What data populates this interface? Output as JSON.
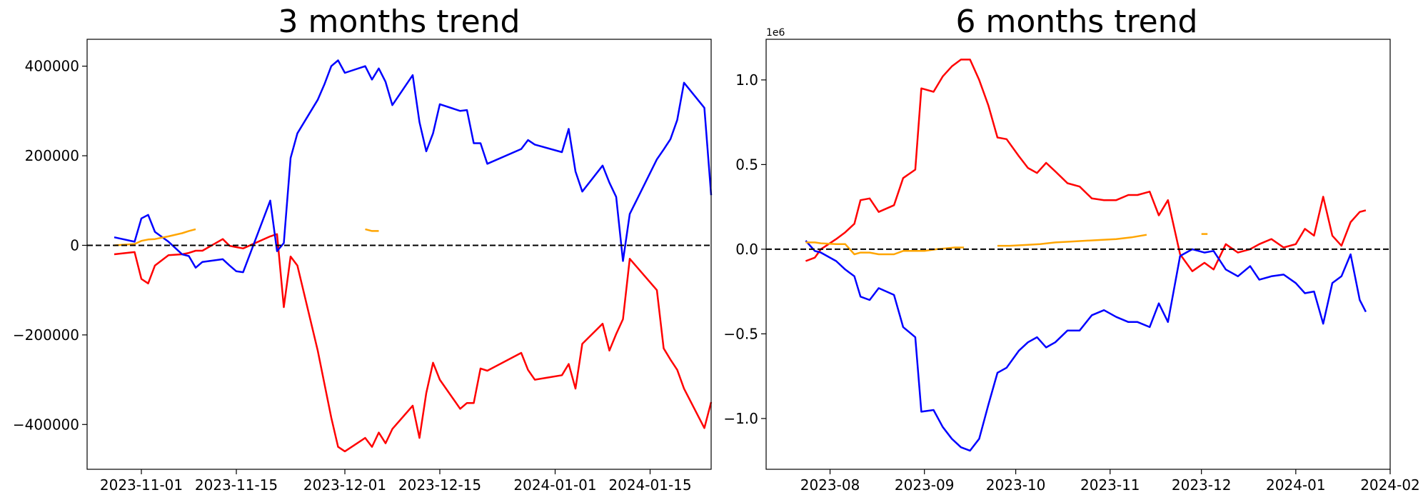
{
  "colors": {
    "series_a": "#ff0000",
    "series_b": "#0000ff",
    "series_c": "#ffa500",
    "zero_line": "#000000"
  },
  "chart_data": [
    {
      "type": "line",
      "title": "3 months trend",
      "xlabel": "",
      "ylabel": "",
      "x_ticks": [
        "2023-11-01",
        "2023-11-15",
        "2023-12-01",
        "2023-12-15",
        "2024-01-01",
        "2024-01-15"
      ],
      "y_ticks": [
        "400000",
        "200000",
        "0",
        "−200000",
        "−400000"
      ],
      "xlim": [
        "2023-10-24",
        "2024-01-24"
      ],
      "ylim": [
        -500000,
        460000
      ],
      "reference_line": {
        "y": 0,
        "style": "dashed"
      },
      "grid": false,
      "series": [
        {
          "color": "#ff0000",
          "x": [
            "2023-10-28",
            "2023-10-31",
            "2023-11-01",
            "2023-11-02",
            "2023-11-03",
            "2023-11-05",
            "2023-11-07",
            "2023-11-08",
            "2023-11-09",
            "2023-11-10",
            "2023-11-13",
            "2023-11-14",
            "2023-11-15",
            "2023-11-16",
            "2023-11-20",
            "2023-11-21",
            "2023-11-22",
            "2023-11-23",
            "2023-11-24",
            "2023-11-27",
            "2023-11-28",
            "2023-11-29",
            "2023-11-30",
            "2023-12-01",
            "2023-12-04",
            "2023-12-05",
            "2023-12-06",
            "2023-12-07",
            "2023-12-08",
            "2023-12-11",
            "2023-12-12",
            "2023-12-13",
            "2023-12-14",
            "2023-12-15",
            "2023-12-18",
            "2023-12-19",
            "2023-12-20",
            "2023-12-21",
            "2023-12-22",
            "2023-12-27",
            "2023-12-28",
            "2023-12-29",
            "2024-01-02",
            "2024-01-03",
            "2024-01-04",
            "2024-01-05",
            "2024-01-08",
            "2024-01-09",
            "2024-01-10",
            "2024-01-11",
            "2024-01-12",
            "2024-01-16",
            "2024-01-17",
            "2024-01-18",
            "2024-01-19",
            "2024-01-20",
            "2024-01-23",
            "2024-01-24"
          ],
          "y": [
            -20000,
            -15000,
            -75000,
            -85000,
            -45000,
            -22000,
            -20000,
            -17000,
            -12000,
            -12000,
            14000,
            -1000,
            -4000,
            -7000,
            20000,
            25000,
            -138000,
            -25000,
            -45000,
            -235000,
            -310000,
            -385000,
            -450000,
            -460000,
            -430000,
            -450000,
            -418000,
            -442000,
            -410000,
            -358000,
            -430000,
            -330000,
            -262000,
            -300000,
            -365000,
            -352000,
            -352000,
            -275000,
            -280000,
            -240000,
            -278000,
            -300000,
            -290000,
            -265000,
            -320000,
            -220000,
            -175000,
            -235000,
            -198000,
            -165000,
            -30000,
            -100000,
            -230000,
            -255000,
            -278000,
            -320000,
            -408000,
            -350000
          ]
        },
        {
          "color": "#0000ff",
          "x": [
            "2023-10-28",
            "2023-10-31",
            "2023-11-01",
            "2023-11-02",
            "2023-11-03",
            "2023-11-05",
            "2023-11-07",
            "2023-11-08",
            "2023-11-09",
            "2023-11-10",
            "2023-11-13",
            "2023-11-14",
            "2023-11-15",
            "2023-11-16",
            "2023-11-20",
            "2023-11-21",
            "2023-11-22",
            "2023-11-23",
            "2023-11-24",
            "2023-11-27",
            "2023-11-28",
            "2023-11-29",
            "2023-11-30",
            "2023-12-01",
            "2023-12-04",
            "2023-12-05",
            "2023-12-06",
            "2023-12-07",
            "2023-12-08",
            "2023-12-11",
            "2023-12-12",
            "2023-12-13",
            "2023-12-14",
            "2023-12-15",
            "2023-12-18",
            "2023-12-19",
            "2023-12-20",
            "2023-12-21",
            "2023-12-22",
            "2023-12-27",
            "2023-12-28",
            "2023-12-29",
            "2024-01-02",
            "2024-01-03",
            "2024-01-04",
            "2024-01-05",
            "2024-01-08",
            "2024-01-09",
            "2024-01-10",
            "2024-01-11",
            "2024-01-12",
            "2024-01-16",
            "2024-01-17",
            "2024-01-18",
            "2024-01-19",
            "2024-01-20",
            "2024-01-23",
            "2024-01-24"
          ],
          "y": [
            18000,
            8000,
            60000,
            68000,
            30000,
            8000,
            -20000,
            -24000,
            -50000,
            -37000,
            -31000,
            -45000,
            -58000,
            -60000,
            100000,
            -13000,
            5000,
            195000,
            250000,
            325000,
            360000,
            400000,
            413000,
            385000,
            400000,
            370000,
            395000,
            365000,
            313000,
            380000,
            275000,
            210000,
            250000,
            315000,
            300000,
            302000,
            228000,
            228000,
            182000,
            215000,
            235000,
            225000,
            208000,
            260000,
            165000,
            120000,
            178000,
            140000,
            108000,
            -35000,
            70000,
            192000,
            214000,
            237000,
            280000,
            363000,
            307000,
            112000
          ]
        },
        {
          "color": "#ffa500",
          "x": [
            "2023-10-28",
            "2023-10-31",
            "2023-11-01",
            "2023-11-02",
            "2023-11-03",
            "2023-11-05",
            "2023-11-07",
            "2023-11-08",
            "2023-11-09",
            "2023-12-04",
            "2023-12-05",
            "2023-12-06"
          ],
          "y": [
            0,
            3000,
            10000,
            13000,
            14000,
            20000,
            27000,
            32000,
            36000,
            36000,
            32000,
            32000
          ]
        }
      ]
    },
    {
      "type": "line",
      "title": "6 months trend",
      "xlabel": "",
      "ylabel": "",
      "scale_label": "1e6",
      "x_ticks": [
        "2023-08",
        "2023-09",
        "2023-10",
        "2023-11",
        "2023-12",
        "2024-01",
        "2024-02"
      ],
      "y_ticks": [
        "1.0",
        "0.5",
        "0.0",
        "−0.5",
        "−1.0"
      ],
      "xlim": [
        "2023-07-11",
        "2024-02-01"
      ],
      "ylim": [
        -1.3,
        1.24
      ],
      "reference_line": {
        "y": 0,
        "style": "dashed"
      },
      "grid": false,
      "series": [
        {
          "color": "#ff0000",
          "x": [
            "2023-07-24",
            "2023-07-27",
            "2023-07-29",
            "2023-08-03",
            "2023-08-06",
            "2023-08-09",
            "2023-08-11",
            "2023-08-14",
            "2023-08-17",
            "2023-08-22",
            "2023-08-25",
            "2023-08-29",
            "2023-08-31",
            "2023-09-04",
            "2023-09-07",
            "2023-09-10",
            "2023-09-13",
            "2023-09-16",
            "2023-09-19",
            "2023-09-22",
            "2023-09-25",
            "2023-09-28",
            "2023-10-02",
            "2023-10-05",
            "2023-10-08",
            "2023-10-11",
            "2023-10-14",
            "2023-10-18",
            "2023-10-22",
            "2023-10-26",
            "2023-10-30",
            "2023-11-03",
            "2023-11-07",
            "2023-11-10",
            "2023-11-14",
            "2023-11-17",
            "2023-11-20",
            "2023-11-24",
            "2023-11-28",
            "2023-12-02",
            "2023-12-05",
            "2023-12-09",
            "2023-12-13",
            "2023-12-17",
            "2023-12-20",
            "2023-12-24",
            "2023-12-28",
            "2024-01-01",
            "2024-01-04",
            "2024-01-07",
            "2024-01-10",
            "2024-01-13",
            "2024-01-16",
            "2024-01-19",
            "2024-01-22",
            "2024-01-24"
          ],
          "y": [
            -0.07,
            -0.05,
            0.0,
            0.06,
            0.1,
            0.15,
            0.29,
            0.3,
            0.22,
            0.26,
            0.42,
            0.47,
            0.95,
            0.93,
            1.02,
            1.08,
            1.12,
            1.12,
            1.0,
            0.85,
            0.66,
            0.65,
            0.55,
            0.48,
            0.45,
            0.51,
            0.46,
            0.39,
            0.37,
            0.3,
            0.29,
            0.29,
            0.32,
            0.32,
            0.34,
            0.2,
            0.29,
            -0.03,
            -0.13,
            -0.08,
            -0.12,
            0.03,
            -0.02,
            0.0,
            0.03,
            0.06,
            0.01,
            0.03,
            0.12,
            0.08,
            0.31,
            0.08,
            0.02,
            0.16,
            0.22,
            0.23
          ]
        },
        {
          "color": "#0000ff",
          "x": [
            "2023-07-24",
            "2023-07-27",
            "2023-07-29",
            "2023-08-03",
            "2023-08-06",
            "2023-08-09",
            "2023-08-11",
            "2023-08-14",
            "2023-08-17",
            "2023-08-22",
            "2023-08-25",
            "2023-08-29",
            "2023-08-31",
            "2023-09-04",
            "2023-09-07",
            "2023-09-10",
            "2023-09-13",
            "2023-09-16",
            "2023-09-19",
            "2023-09-22",
            "2023-09-25",
            "2023-09-28",
            "2023-10-02",
            "2023-10-05",
            "2023-10-08",
            "2023-10-11",
            "2023-10-14",
            "2023-10-18",
            "2023-10-22",
            "2023-10-26",
            "2023-10-30",
            "2023-11-03",
            "2023-11-07",
            "2023-11-10",
            "2023-11-14",
            "2023-11-17",
            "2023-11-20",
            "2023-11-24",
            "2023-11-28",
            "2023-12-02",
            "2023-12-05",
            "2023-12-09",
            "2023-12-13",
            "2023-12-17",
            "2023-12-20",
            "2023-12-24",
            "2023-12-28",
            "2024-01-01",
            "2024-01-04",
            "2024-01-07",
            "2024-01-10",
            "2024-01-13",
            "2024-01-16",
            "2024-01-19",
            "2024-01-22",
            "2024-01-24"
          ],
          "y": [
            0.05,
            -0.01,
            -0.02,
            -0.07,
            -0.12,
            -0.16,
            -0.28,
            -0.3,
            -0.23,
            -0.27,
            -0.46,
            -0.52,
            -0.96,
            -0.95,
            -1.05,
            -1.12,
            -1.17,
            -1.19,
            -1.12,
            -0.92,
            -0.73,
            -0.7,
            -0.6,
            -0.55,
            -0.52,
            -0.58,
            -0.55,
            -0.48,
            -0.48,
            -0.39,
            -0.36,
            -0.4,
            -0.43,
            -0.43,
            -0.46,
            -0.32,
            -0.43,
            -0.04,
            0.0,
            -0.02,
            -0.01,
            -0.12,
            -0.16,
            -0.1,
            -0.18,
            -0.16,
            -0.15,
            -0.2,
            -0.26,
            -0.25,
            -0.44,
            -0.2,
            -0.16,
            -0.03,
            -0.3,
            -0.37
          ]
        },
        {
          "color": "#ffa500",
          "x": [
            "2023-07-24",
            "2023-07-27",
            "2023-07-29",
            "2023-08-03",
            "2023-08-06",
            "2023-08-09",
            "2023-08-11",
            "2023-08-14",
            "2023-08-17",
            "2023-08-22",
            "2023-08-25",
            "2023-08-29",
            "2023-09-01",
            "2023-09-05",
            "2023-09-08",
            "2023-09-11",
            "2023-09-14",
            "2023-09-25",
            "2023-09-29",
            "2023-10-04",
            "2023-10-09",
            "2023-10-14",
            "2023-10-19",
            "2023-10-24",
            "2023-10-29",
            "2023-11-03",
            "2023-11-08",
            "2023-11-13",
            "2023-12-01",
            "2023-12-03"
          ],
          "y": [
            0.04,
            0.04,
            0.035,
            0.03,
            0.03,
            -0.03,
            -0.02,
            -0.02,
            -0.03,
            -0.03,
            -0.01,
            -0.01,
            -0.01,
            0.0,
            0.005,
            0.01,
            0.01,
            0.02,
            0.02,
            0.025,
            0.03,
            0.04,
            0.045,
            0.05,
            0.055,
            0.06,
            0.07,
            0.085,
            0.09,
            0.09
          ]
        }
      ]
    }
  ]
}
